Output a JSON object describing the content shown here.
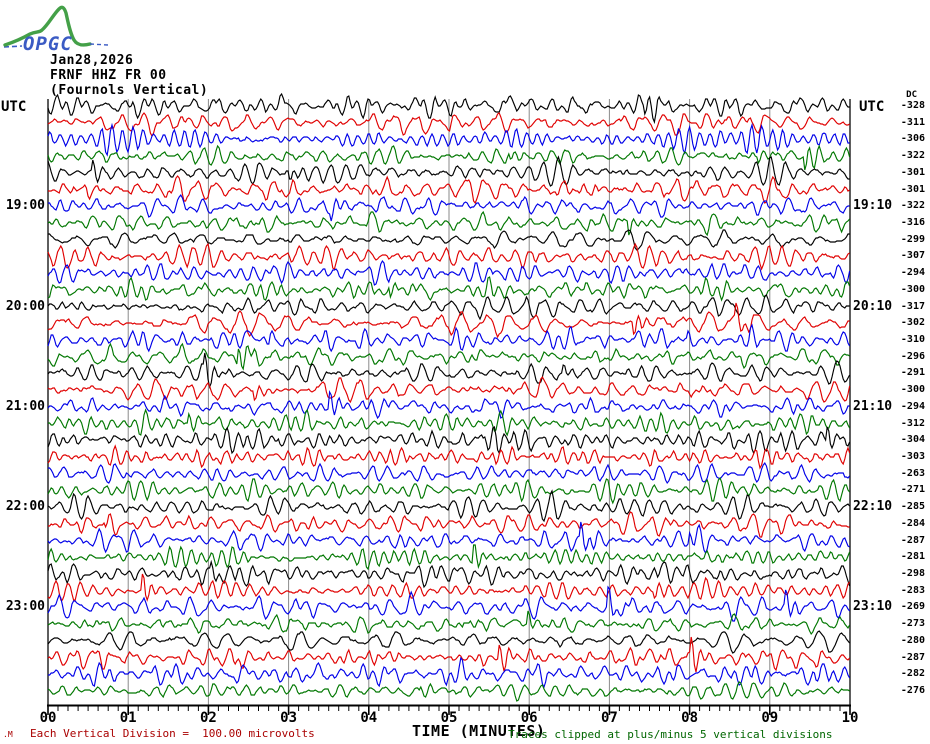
{
  "header": {
    "logo_text": "OPGC",
    "date": "Jan28,2026",
    "station_code": "FRNF HHZ FR 00",
    "station_name": "(Fournols Vertical)"
  },
  "axes": {
    "utc_left": "UTC",
    "utc_right": "UTC",
    "dc_header": "DC",
    "x_title": "TIME (MINUTES)",
    "x_tick_labels": [
      "00",
      "01",
      "02",
      "03",
      "04",
      "05",
      "06",
      "07",
      "08",
      "09",
      "10"
    ]
  },
  "footer": {
    "corner_mark": ".M",
    "left_note": "Each Vertical Division =  100.00 microvolts",
    "right_note": "Traces clipped at plus/minus 5 vertical divisions"
  },
  "colors": {
    "trace_black": "#000000",
    "trace_red": "#e00000",
    "trace_blue": "#0000e8",
    "trace_green": "#007700",
    "grid": "#8a8a8a",
    "axis": "#000000",
    "footer_left": "#aa0000",
    "footer_right": "#006600",
    "logo_green": "#44a048",
    "logo_blue": "#3b5bc4"
  },
  "chart_data": {
    "type": "line",
    "description": "Helicorder seismogram: 36 consecutive 10-minute traces, amplitude clipped at plus/minus 5 vertical divisions, each vertical division = 100.00 microvolts",
    "x_axis": {
      "title": "TIME (MINUTES)",
      "range": [
        0,
        10
      ],
      "major_tick_every_minutes": 1,
      "minor_ticks_per_minute": 8
    },
    "grid": "vertical minute lines only",
    "trace_color_cycle": [
      "black",
      "red",
      "blue",
      "green"
    ],
    "rows": [
      {
        "dc": -328,
        "color": "black",
        "left_label": "",
        "right_label": ""
      },
      {
        "dc": -311,
        "color": "red",
        "left_label": "",
        "right_label": ""
      },
      {
        "dc": -306,
        "color": "blue",
        "left_label": "",
        "right_label": ""
      },
      {
        "dc": -322,
        "color": "green",
        "left_label": "",
        "right_label": ""
      },
      {
        "dc": -301,
        "color": "black",
        "left_label": "",
        "right_label": ""
      },
      {
        "dc": -301,
        "color": "red",
        "left_label": "",
        "right_label": ""
      },
      {
        "dc": -322,
        "color": "blue",
        "left_label": "19:00",
        "right_label": "19:10"
      },
      {
        "dc": -316,
        "color": "green",
        "left_label": "",
        "right_label": ""
      },
      {
        "dc": -299,
        "color": "black",
        "left_label": "",
        "right_label": ""
      },
      {
        "dc": -307,
        "color": "red",
        "left_label": "",
        "right_label": ""
      },
      {
        "dc": -294,
        "color": "blue",
        "left_label": "",
        "right_label": ""
      },
      {
        "dc": -300,
        "color": "green",
        "left_label": "",
        "right_label": ""
      },
      {
        "dc": -317,
        "color": "black",
        "left_label": "20:00",
        "right_label": "20:10"
      },
      {
        "dc": -302,
        "color": "red",
        "left_label": "",
        "right_label": ""
      },
      {
        "dc": -310,
        "color": "blue",
        "left_label": "",
        "right_label": ""
      },
      {
        "dc": -296,
        "color": "green",
        "left_label": "",
        "right_label": ""
      },
      {
        "dc": -291,
        "color": "black",
        "left_label": "",
        "right_label": ""
      },
      {
        "dc": -300,
        "color": "red",
        "left_label": "",
        "right_label": ""
      },
      {
        "dc": -294,
        "color": "blue",
        "left_label": "21:00",
        "right_label": "21:10"
      },
      {
        "dc": -312,
        "color": "green",
        "left_label": "",
        "right_label": ""
      },
      {
        "dc": -304,
        "color": "black",
        "left_label": "",
        "right_label": ""
      },
      {
        "dc": -303,
        "color": "red",
        "left_label": "",
        "right_label": ""
      },
      {
        "dc": -263,
        "color": "blue",
        "left_label": "",
        "right_label": ""
      },
      {
        "dc": -271,
        "color": "green",
        "left_label": "",
        "right_label": ""
      },
      {
        "dc": -285,
        "color": "black",
        "left_label": "22:00",
        "right_label": "22:10"
      },
      {
        "dc": -284,
        "color": "red",
        "left_label": "",
        "right_label": ""
      },
      {
        "dc": -287,
        "color": "blue",
        "left_label": "",
        "right_label": ""
      },
      {
        "dc": -281,
        "color": "green",
        "left_label": "",
        "right_label": ""
      },
      {
        "dc": -298,
        "color": "black",
        "left_label": "",
        "right_label": ""
      },
      {
        "dc": -283,
        "color": "red",
        "left_label": "",
        "right_label": ""
      },
      {
        "dc": -269,
        "color": "blue",
        "left_label": "23:00",
        "right_label": "23:10"
      },
      {
        "dc": -273,
        "color": "green",
        "left_label": "",
        "right_label": ""
      },
      {
        "dc": -280,
        "color": "black",
        "left_label": "",
        "right_label": ""
      },
      {
        "dc": -287,
        "color": "red",
        "left_label": "",
        "right_label": ""
      },
      {
        "dc": -282,
        "color": "blue",
        "left_label": "",
        "right_label": ""
      },
      {
        "dc": -276,
        "color": "green",
        "left_label": "",
        "right_label": ""
      }
    ]
  }
}
